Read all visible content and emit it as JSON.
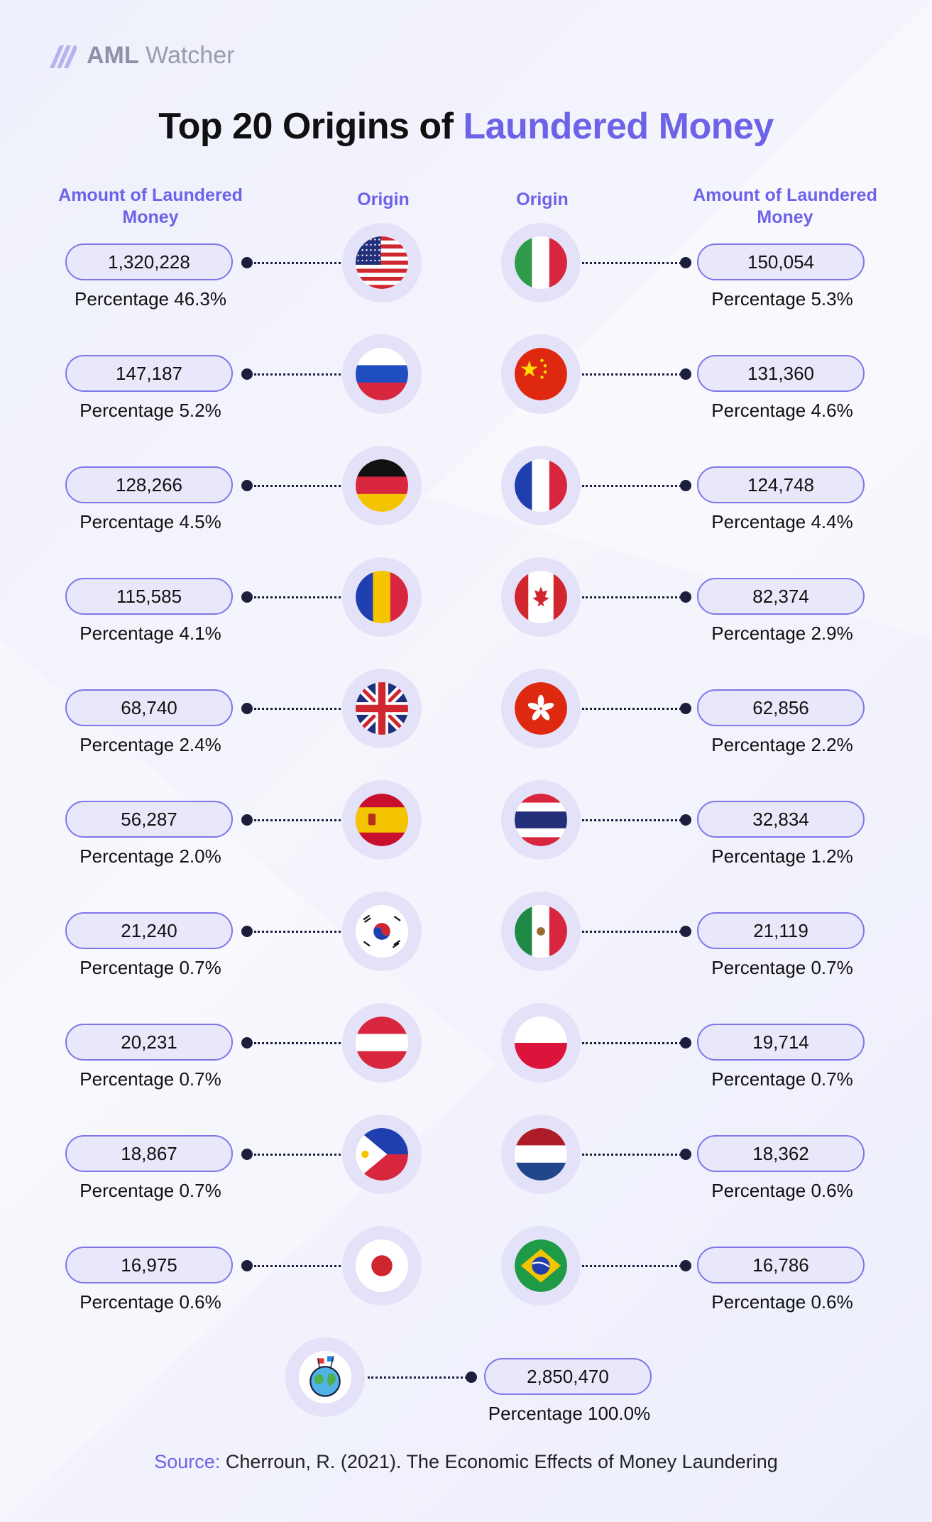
{
  "brand": {
    "name_bold": "AML",
    "name_light": "Watcher"
  },
  "title": {
    "main": "Top 20 Origins of ",
    "accent": "Laundered Money"
  },
  "headers": {
    "amount": "Amount of Laundered Money",
    "origin": "Origin"
  },
  "chart_data": {
    "type": "table",
    "title": "Top 20 Origins of Laundered Money",
    "columns": [
      "Origin",
      "Amount of Laundered Money",
      "Percentage"
    ],
    "left": [
      {
        "flag": "usa-flag-icon",
        "amount": "1,320,228",
        "percentage": "Percentage 46.3%"
      },
      {
        "flag": "russia-flag-icon",
        "amount": "147,187",
        "percentage": "Percentage 5.2%"
      },
      {
        "flag": "germany-flag-icon",
        "amount": "128,266",
        "percentage": "Percentage 4.5%"
      },
      {
        "flag": "romania-flag-icon",
        "amount": "115,585",
        "percentage": "Percentage 4.1%"
      },
      {
        "flag": "uk-flag-icon",
        "amount": "68,740",
        "percentage": "Percentage 2.4%"
      },
      {
        "flag": "spain-flag-icon",
        "amount": "56,287",
        "percentage": "Percentage 2.0%"
      },
      {
        "flag": "south-korea-flag-icon",
        "amount": "21,240",
        "percentage": "Percentage 0.7%"
      },
      {
        "flag": "austria-flag-icon",
        "amount": "20,231",
        "percentage": "Percentage 0.7%"
      },
      {
        "flag": "philippines-flag-icon",
        "amount": "18,867",
        "percentage": "Percentage 0.7%"
      },
      {
        "flag": "japan-flag-icon",
        "amount": "16,975",
        "percentage": "Percentage 0.6%"
      }
    ],
    "right": [
      {
        "flag": "italy-flag-icon",
        "amount": "150,054",
        "percentage": "Percentage 5.3%"
      },
      {
        "flag": "china-flag-icon",
        "amount": "131,360",
        "percentage": "Percentage 4.6%"
      },
      {
        "flag": "france-flag-icon",
        "amount": "124,748",
        "percentage": "Percentage 4.4%"
      },
      {
        "flag": "canada-flag-icon",
        "amount": "82,374",
        "percentage": "Percentage 2.9%"
      },
      {
        "flag": "hong-kong-flag-icon",
        "amount": "62,856",
        "percentage": "Percentage 2.2%"
      },
      {
        "flag": "thailand-flag-icon",
        "amount": "32,834",
        "percentage": "Percentage 1.2%"
      },
      {
        "flag": "mexico-flag-icon",
        "amount": "21,119",
        "percentage": "Percentage 0.7%"
      },
      {
        "flag": "poland-flag-icon",
        "amount": "19,714",
        "percentage": "Percentage 0.7%"
      },
      {
        "flag": "netherlands-flag-icon",
        "amount": "18,362",
        "percentage": "Percentage 0.6%"
      },
      {
        "flag": "brazil-flag-icon",
        "amount": "16,786",
        "percentage": "Percentage 0.6%"
      }
    ],
    "total": {
      "icon": "globe-icon",
      "amount": "2,850,470",
      "percentage": "Percentage 100.0%"
    }
  },
  "source": {
    "label": "Source:",
    "text": " Cherroun, R. (2021). The Economic Effects of Money Laundering"
  },
  "colors": {
    "accent": "#6c63e8",
    "pill_border": "#7e77e8",
    "pill_fill": "#e9e8fb",
    "ring": "#e3e2f9",
    "dark": "#1b1f3b"
  }
}
